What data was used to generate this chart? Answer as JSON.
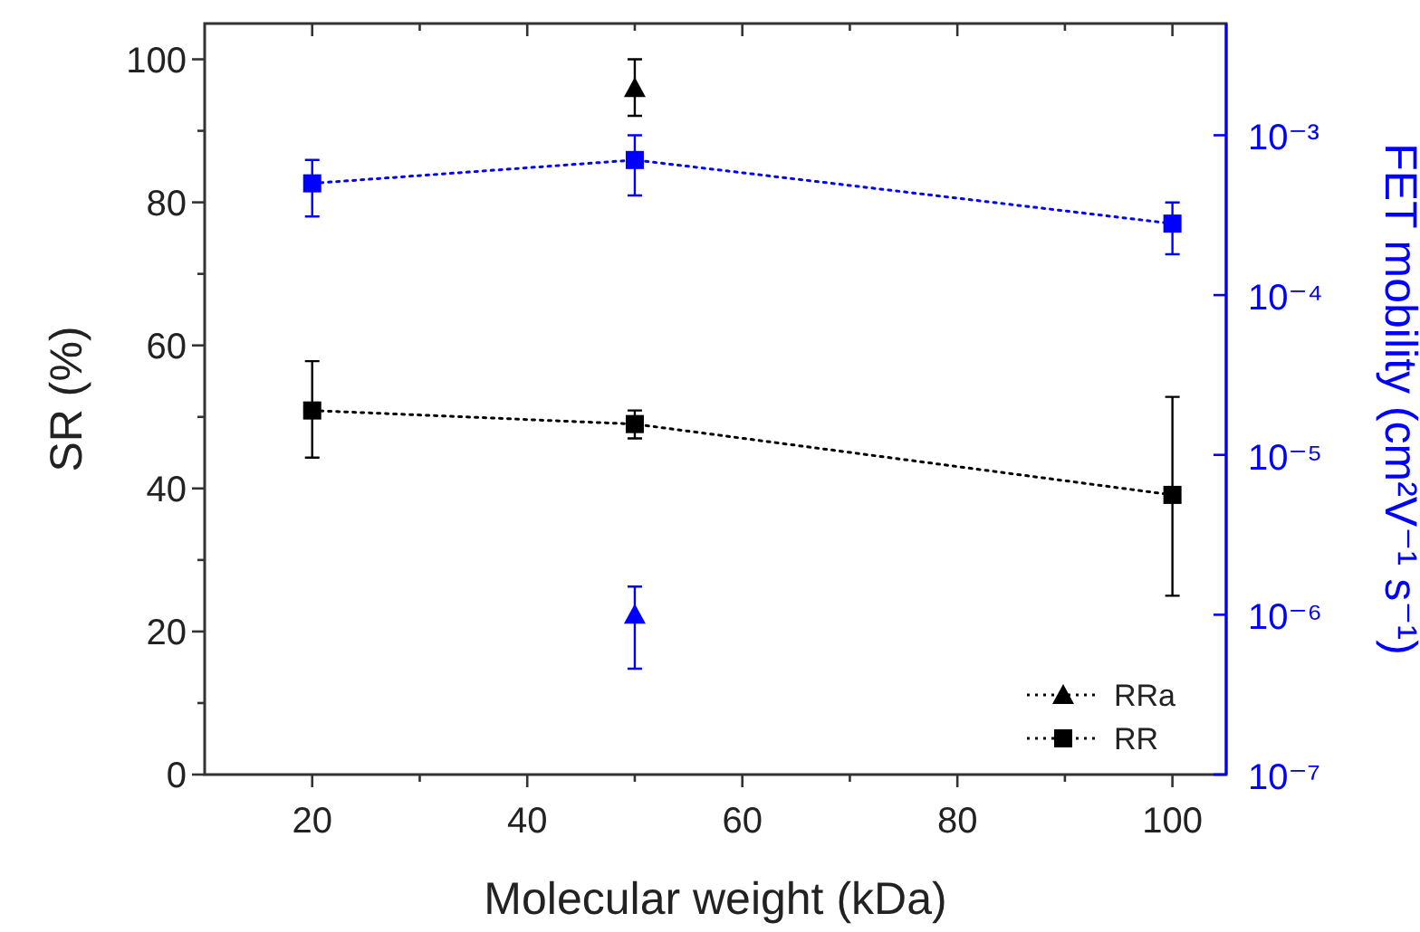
{
  "chart_data": {
    "type": "line",
    "xlabel": "Molecular weight (kDa)",
    "ylabel": "SR (%)",
    "y2label": "FET mobility (cm²V⁻¹ s⁻¹)",
    "xlim": [
      10,
      105
    ],
    "xticks": [
      20,
      {
        "value": 30,
        "label": null
      },
      40,
      {
        "value": 50,
        "label": null
      },
      60,
      {
        "value": 70,
        "label": null
      },
      80,
      {
        "value": 90,
        "label": null
      },
      100
    ],
    "ylim": [
      0,
      105
    ],
    "yticks": [
      0,
      {
        "value": 10,
        "label": null
      },
      20,
      {
        "value": 30,
        "label": null
      },
      40,
      {
        "value": 50,
        "label": null
      },
      60,
      {
        "value": 70,
        "label": null
      },
      80,
      {
        "value": 90,
        "label": null
      },
      100
    ],
    "y2lim": [
      1e-07,
      0.005
    ],
    "y2ticks": [
      {
        "value": 1e-07,
        "label": "10⁻⁷"
      },
      {
        "value": 1e-06,
        "label": "10⁻⁶"
      },
      {
        "value": 1e-05,
        "label": "10⁻⁵"
      },
      {
        "value": 0.0001,
        "label": "10⁻⁴"
      },
      {
        "value": 0.001,
        "label": "10⁻³"
      }
    ],
    "log": "y2",
    "grid": false,
    "legend": "bottom right",
    "line_style": "dotted",
    "series": [
      {
        "name": "RRa",
        "color": "#000000",
        "marker": "triangle",
        "x": [
          50
        ],
        "values": [
          96
        ],
        "errors": [
          [
            92.1,
            100
          ]
        ]
      },
      {
        "name": "RR",
        "color": "#000000",
        "marker": "square",
        "x": [
          20,
          50,
          100
        ],
        "values": [
          50.9,
          49,
          39.1
        ],
        "errors": [
          [
            44.3,
            57.8
          ],
          [
            47,
            50.9
          ],
          [
            25,
            52.8
          ]
        ]
      },
      {
        "color": "#0000ff",
        "marker": "square",
        "axis": "y2",
        "x": [
          20,
          50,
          100
        ],
        "values": [
          0.0005,
          0.0007,
          0.00028
        ],
        "errors": [
          [
            0.00031,
            0.0007
          ],
          [
            0.00042,
            0.001
          ],
          [
            0.00018,
            0.00038
          ]
        ]
      },
      {
        "color": "#0000ff",
        "marker": "triangle",
        "axis": "y2",
        "x": [
          50
        ],
        "values": [
          1e-06
        ],
        "errors": [
          [
            4.6e-07,
            1.5e-06
          ]
        ]
      }
    ]
  }
}
